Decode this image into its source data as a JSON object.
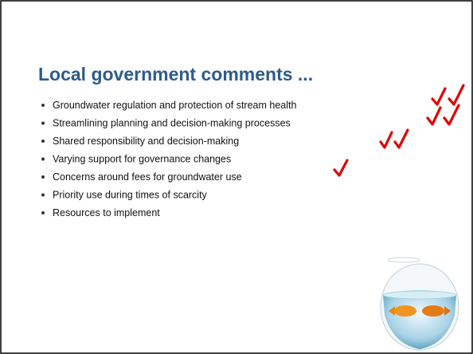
{
  "slide": {
    "title": "Local government comments ...",
    "bullets": [
      "Groundwater regulation and protection of stream health",
      "Streamlining planning and decision-making processes",
      "Shared responsibility and decision-making",
      "Varying support for governance changes",
      "Concerns around fees for groundwater use",
      "Priority use during times of scarcity",
      "Resources to implement"
    ]
  }
}
